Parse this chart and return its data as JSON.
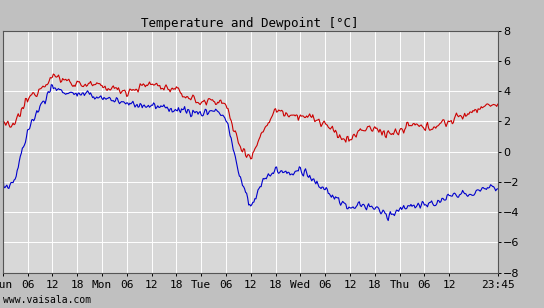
{
  "title": "Temperature and Dewpoint [°C]",
  "ylim": [
    -8,
    8
  ],
  "yticks": [
    -8,
    -6,
    -4,
    -2,
    0,
    2,
    4,
    6,
    8
  ],
  "bg_color": "#c0c0c0",
  "plot_bg_color": "#d8d8d8",
  "grid_color": "#ffffff",
  "temp_color": "#cc0000",
  "dewp_color": "#0000cc",
  "watermark": "www.vaisala.com",
  "xtick_labels": [
    "Sun",
    "06",
    "12",
    "18",
    "Mon",
    "06",
    "12",
    "18",
    "Tue",
    "06",
    "12",
    "18",
    "Wed",
    "06",
    "12",
    "18",
    "Thu",
    "06",
    "12",
    "23:45"
  ],
  "xtick_positions": [
    0,
    6,
    12,
    18,
    24,
    30,
    36,
    42,
    48,
    54,
    60,
    66,
    72,
    78,
    84,
    90,
    96,
    102,
    108,
    119.75
  ]
}
